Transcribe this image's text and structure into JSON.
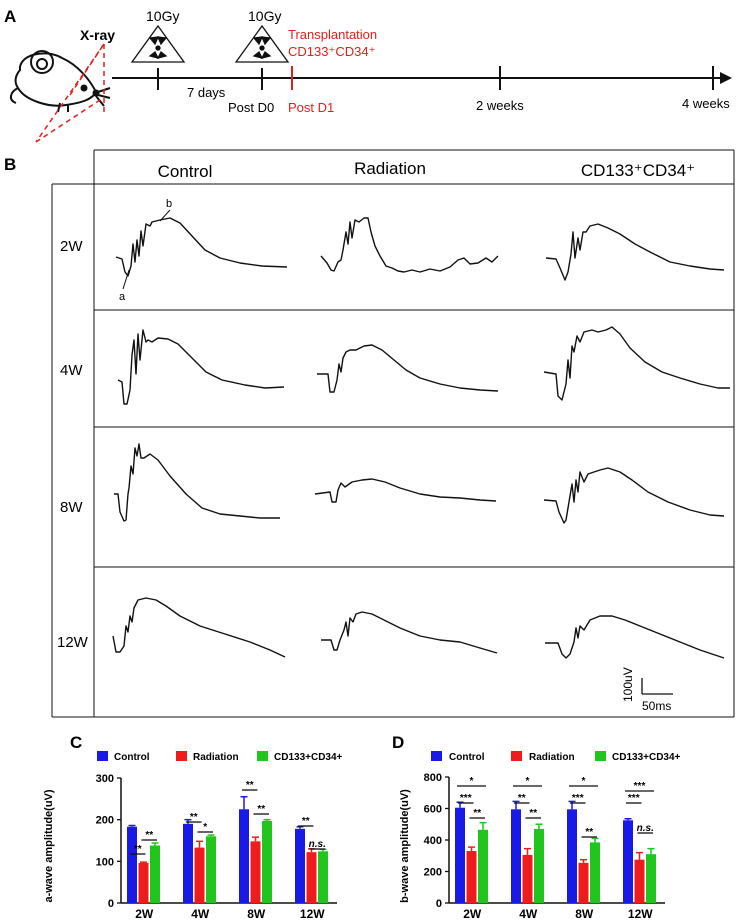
{
  "panel_a": {
    "label": "A",
    "xray": "X-ray",
    "dose1": "10Gy",
    "dose2": "10Gy",
    "interval": "7 days",
    "transplant_title": "Transplantation",
    "transplant_cells": "CD133⁺CD34⁺",
    "ticks": [
      {
        "label": "Post D0",
        "color": "#111111"
      },
      {
        "label": "Post D1",
        "color": "#e0201b"
      },
      {
        "label": "2 weeks",
        "color": "#111111"
      },
      {
        "label": "4 weeks",
        "color": "#111111"
      }
    ]
  },
  "panel_b": {
    "label": "B",
    "columns": [
      "Control",
      "Radiation",
      "CD133⁺CD34⁺"
    ],
    "rows": [
      "2W",
      "4W",
      "8W",
      "12W"
    ],
    "wave_a": "a",
    "wave_b": "b",
    "scale_v": "100uV",
    "scale_t": "50ms"
  },
  "colors": {
    "control": "#1a1ae6",
    "radiation": "#f01c1c",
    "cd": "#22c41e",
    "axis": "#111111",
    "red": "#e0201b"
  },
  "chart_data": [
    {
      "panel": "C",
      "type": "bar",
      "ylabel": "a-wave amplitude(uV)",
      "ylim": [
        0,
        300
      ],
      "yticks": [
        0,
        100,
        200,
        300
      ],
      "categories": [
        "2W",
        "4W",
        "8W",
        "12W"
      ],
      "series": [
        {
          "name": "Control",
          "values": [
            183,
            190,
            225,
            178
          ],
          "errors": [
            3,
            10,
            30,
            5
          ]
        },
        {
          "name": "Radiation",
          "values": [
            96,
            133,
            148,
            122
          ],
          "errors": [
            2,
            15,
            10,
            8
          ]
        },
        {
          "name": "CD133+CD34+",
          "values": [
            138,
            160,
            197,
            124
          ],
          "errors": [
            6,
            3,
            3,
            5
          ]
        }
      ],
      "significance": [
        {
          "category": "2W",
          "label": "**"
        },
        {
          "category": "2W",
          "label": "**"
        },
        {
          "category": "4W",
          "label": "**"
        },
        {
          "category": "4W",
          "label": "*"
        },
        {
          "category": "8W",
          "label": "**"
        },
        {
          "category": "8W",
          "label": "**"
        },
        {
          "category": "12W",
          "label": "**"
        },
        {
          "category": "12W",
          "label": "n.s."
        }
      ]
    },
    {
      "panel": "D",
      "type": "bar",
      "ylabel": "b-wave amplitude(uV)",
      "ylim": [
        0,
        800
      ],
      "yticks": [
        0,
        200,
        400,
        600,
        800
      ],
      "categories": [
        "2W",
        "4W",
        "8W",
        "12W"
      ],
      "series": [
        {
          "name": "Control",
          "values": [
            605,
            595,
            595,
            525
          ],
          "errors": [
            35,
            50,
            50,
            10
          ]
        },
        {
          "name": "Radiation",
          "values": [
            330,
            305,
            255,
            275
          ],
          "errors": [
            25,
            40,
            20,
            45
          ]
        },
        {
          "name": "CD133+CD34+",
          "values": [
            465,
            470,
            385,
            310
          ],
          "errors": [
            45,
            30,
            25,
            35
          ]
        }
      ],
      "significance": [
        {
          "category": "2W",
          "label": "***"
        },
        {
          "category": "2W",
          "label": "**"
        },
        {
          "category": "2W",
          "label": "*"
        },
        {
          "category": "4W",
          "label": "**"
        },
        {
          "category": "4W",
          "label": "**"
        },
        {
          "category": "4W",
          "label": "*"
        },
        {
          "category": "8W",
          "label": "***"
        },
        {
          "category": "8W",
          "label": "**"
        },
        {
          "category": "8W",
          "label": "*"
        },
        {
          "category": "12W",
          "label": "***"
        },
        {
          "category": "12W",
          "label": "n.s."
        },
        {
          "category": "12W",
          "label": "***"
        }
      ]
    }
  ]
}
